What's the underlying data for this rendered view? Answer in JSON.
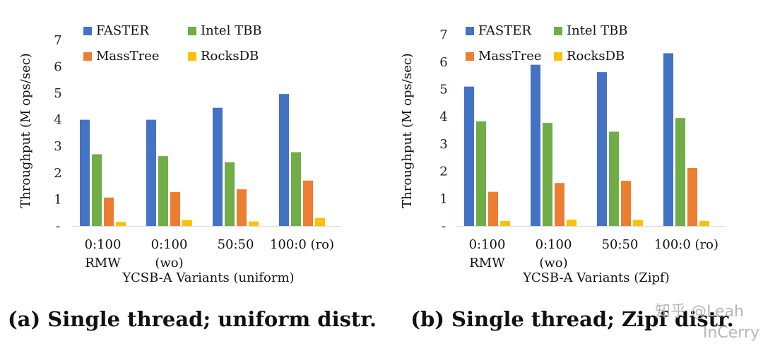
{
  "colors": {
    "FASTER": "#4472C4",
    "Intel TBB": "#70AD47",
    "MassTree": "#ED7D31",
    "RocksDB": "#FFC000"
  },
  "chart_data": [
    {
      "type": "bar",
      "caption": "(a) Single thread; uniform distr.",
      "xlabel": "YCSB-A Variants (uniform)",
      "ylabel": "Throughput (M ops/sec)",
      "ylim": [
        0,
        7
      ],
      "yticks": [
        "-",
        "1",
        "2",
        "3",
        "4",
        "5",
        "6",
        "7"
      ],
      "grid": false,
      "legend_placement": "top",
      "categories": [
        [
          "0:100",
          "RMW"
        ],
        [
          "0:100",
          "(wo)"
        ],
        [
          "50:50"
        ],
        [
          "100:0 (ro)"
        ]
      ],
      "series": [
        {
          "name": "FASTER",
          "values": [
            4.0,
            4.0,
            4.45,
            4.97
          ]
        },
        {
          "name": "Intel TBB",
          "values": [
            2.7,
            2.63,
            2.4,
            2.78
          ]
        },
        {
          "name": "MassTree",
          "values": [
            1.07,
            1.28,
            1.38,
            1.71
          ]
        },
        {
          "name": "RocksDB",
          "values": [
            0.15,
            0.22,
            0.17,
            0.3
          ]
        }
      ]
    },
    {
      "type": "bar",
      "caption": "(b) Single thread; Zipf distr.",
      "xlabel": "YCSB-A Variants (Zipf)",
      "ylabel": "Throughput (M ops/sec)",
      "ylim": [
        0,
        7
      ],
      "yticks": [
        "-",
        "1",
        "2",
        "3",
        "4",
        "5",
        "6",
        "7"
      ],
      "grid": false,
      "legend_placement": "top",
      "categories": [
        [
          "0:100",
          "RMW"
        ],
        [
          "0:100",
          "(wo)"
        ],
        [
          "50:50"
        ],
        [
          "100:0 (ro)"
        ]
      ],
      "series": [
        {
          "name": "FASTER",
          "values": [
            5.1,
            5.9,
            5.63,
            6.32
          ]
        },
        {
          "name": "Intel TBB",
          "values": [
            3.83,
            3.77,
            3.45,
            3.95
          ]
        },
        {
          "name": "MassTree",
          "values": [
            1.25,
            1.57,
            1.65,
            2.12
          ]
        },
        {
          "name": "RocksDB",
          "values": [
            0.18,
            0.23,
            0.22,
            0.18
          ]
        }
      ]
    }
  ],
  "watermark": {
    "line1": "知乎 @Leah",
    "line2": "InCerry"
  }
}
